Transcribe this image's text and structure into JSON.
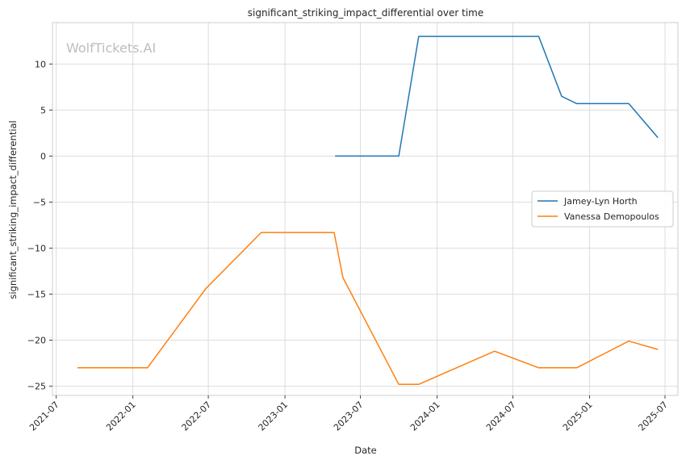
{
  "chart_data": {
    "type": "line",
    "title": "significant_striking_impact_differential over time",
    "xlabel": "Date",
    "ylabel": "significant_striking_impact_differential",
    "watermark": "WolfTickets.AI",
    "xlim": [
      "2021-06-22",
      "2025-08-01"
    ],
    "ylim": [
      -26.0,
      14.5
    ],
    "x_ticks": [
      "2021-07",
      "2022-01",
      "2022-07",
      "2023-01",
      "2023-07",
      "2024-01",
      "2024-07",
      "2025-01",
      "2025-07"
    ],
    "y_ticks": [
      10,
      5,
      0,
      -5,
      -10,
      -15,
      -20,
      -25
    ],
    "grid": true,
    "legend_position": "center-right",
    "series": [
      {
        "name": "Jamey-Lyn Horth",
        "color": "#1f77b4",
        "x": [
          "2023-05-01",
          "2023-10-01",
          "2023-11-18",
          "2024-09-01",
          "2024-10-26",
          "2024-12-01",
          "2025-04-05",
          "2025-06-14"
        ],
        "y": [
          0,
          0,
          13,
          13,
          6.5,
          5.7,
          5.7,
          2
        ]
      },
      {
        "name": "Vanessa Demopoulos",
        "color": "#ff7f0e",
        "x": [
          "2021-08-21",
          "2022-02-05",
          "2022-06-25",
          "2022-11-05",
          "2023-04-29",
          "2023-05-20",
          "2023-10-01",
          "2023-11-18",
          "2024-05-18",
          "2024-09-01",
          "2024-12-01",
          "2025-04-05",
          "2025-06-14"
        ],
        "y": [
          -23,
          -23,
          -14.4,
          -8.3,
          -8.3,
          -13.2,
          -24.8,
          -24.8,
          -21.2,
          -23,
          -23,
          -20.1,
          -21
        ]
      }
    ]
  }
}
